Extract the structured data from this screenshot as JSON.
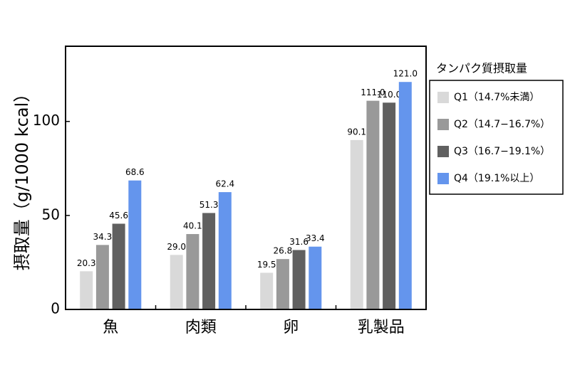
{
  "chart_data": {
    "type": "bar",
    "y_label": "摂取量（g/1000 kcal）",
    "legend_title": "タンパク質摂取量",
    "categories": [
      "魚",
      "肉類",
      "卵",
      "乳製品"
    ],
    "series": [
      {
        "name": "Q1（14.7%未満）",
        "color": "#d9d9d9",
        "values": [
          20.3,
          29.0,
          19.5,
          90.1
        ],
        "value_labels": [
          "20.3",
          "29.0",
          "19.5",
          "90.1"
        ]
      },
      {
        "name": "Q2（14.7−16.7%）",
        "color": "#999999",
        "values": [
          34.3,
          40.1,
          26.8,
          111.0
        ],
        "value_labels": [
          "34.3",
          "40.1",
          "26.8",
          "111.0"
        ]
      },
      {
        "name": "Q3（16.7−19.1%）",
        "color": "#606060",
        "values": [
          45.6,
          51.3,
          31.6,
          110.0
        ],
        "value_labels": [
          "45.6",
          "51.3",
          "31.6",
          "110.0"
        ]
      },
      {
        "name": "Q4（19.1%以上）",
        "color": "#6495ed",
        "values": [
          68.6,
          62.4,
          33.4,
          121.0
        ],
        "value_labels": [
          "68.6",
          "62.4",
          "33.4",
          "121.0"
        ]
      }
    ],
    "ylim": [
      0,
      140
    ],
    "yticks": [
      0,
      50,
      100
    ]
  }
}
